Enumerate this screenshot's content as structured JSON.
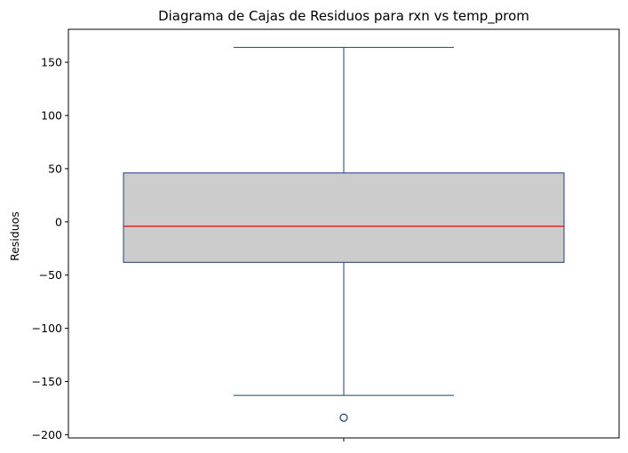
{
  "chart_data": {
    "type": "box",
    "title": "Diagrama de Cajas de Residuos para rxn vs temp_prom",
    "xlabel": "",
    "ylabel": "Residuos",
    "ylim": [
      -203,
      181
    ],
    "yticks": [
      150,
      100,
      50,
      0,
      -50,
      -100,
      -150,
      -200
    ],
    "ytick_labels": [
      "150",
      "100",
      "50",
      "0",
      "−50",
      "−100",
      "−150",
      "−200"
    ],
    "grid": false,
    "series": [
      {
        "whisker_low": -163,
        "q1": -38,
        "median": -4,
        "q3": 46,
        "whisker_high": 164,
        "outliers": [
          -184
        ]
      }
    ],
    "colors": {
      "box_fill": "#cccccc",
      "box_edge": "#1f3f73",
      "whisker": "#1f3f73",
      "median": "#ff0000",
      "outlier_edge": "#1f3f73"
    }
  }
}
